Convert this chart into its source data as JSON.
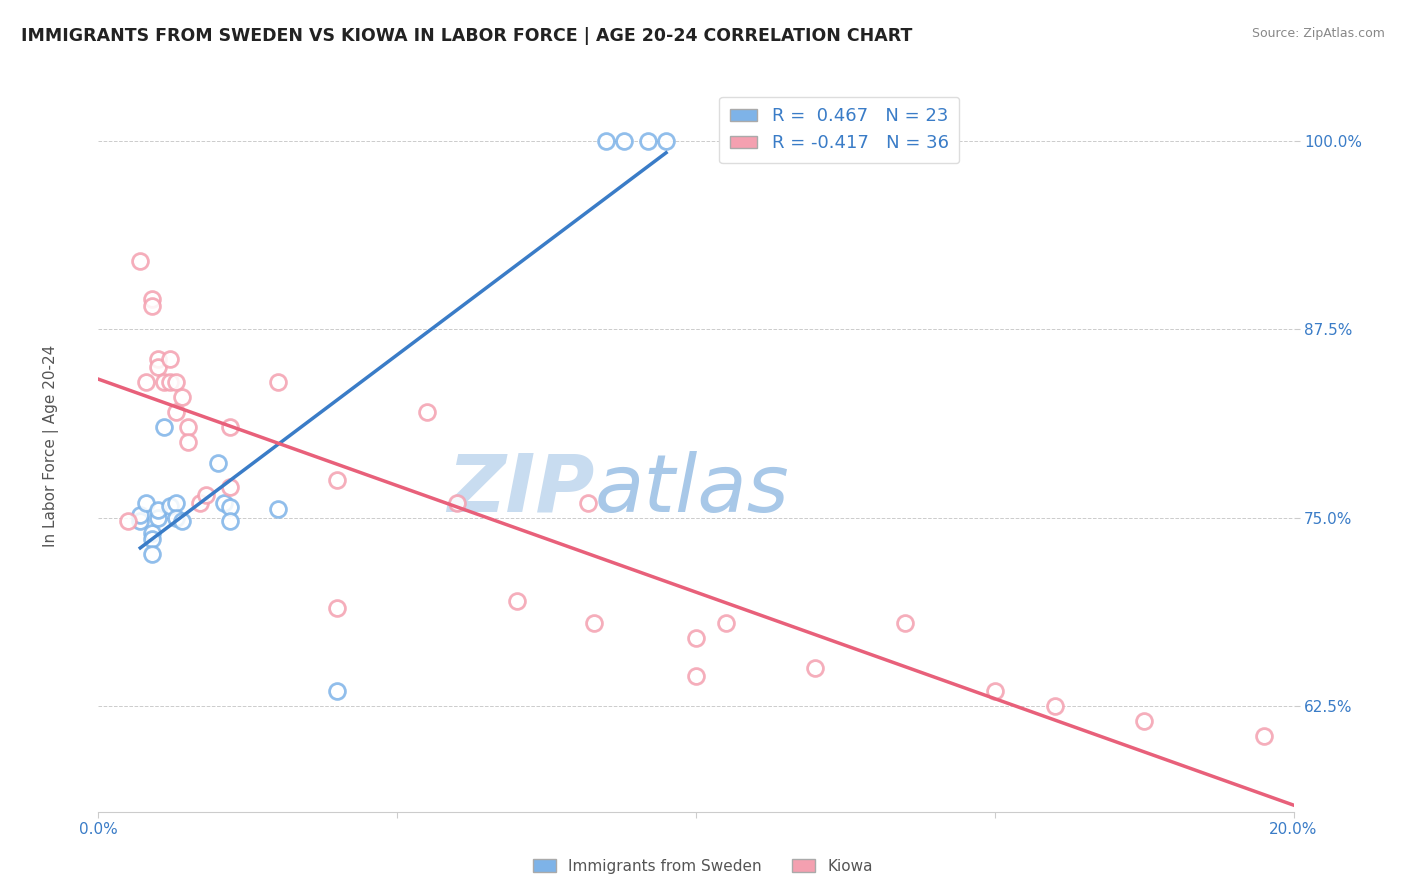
{
  "title": "IMMIGRANTS FROM SWEDEN VS KIOWA IN LABOR FORCE | AGE 20-24 CORRELATION CHART",
  "source": "Source: ZipAtlas.com",
  "ylabel": "In Labor Force | Age 20-24",
  "xlim": [
    0.0,
    0.2
  ],
  "ylim": [
    0.555,
    1.04
  ],
  "yticks": [
    0.625,
    0.75,
    0.875,
    1.0
  ],
  "ytick_labels": [
    "62.5%",
    "75.0%",
    "87.5%",
    "100.0%"
  ],
  "xticks": [
    0.0,
    0.05,
    0.1,
    0.15,
    0.2
  ],
  "xtick_labels": [
    "0.0%",
    "",
    "",
    "",
    "20.0%"
  ],
  "sweden_R": 0.467,
  "sweden_N": 23,
  "kiowa_R": -0.417,
  "kiowa_N": 36,
  "sweden_color": "#7EB3E8",
  "kiowa_color": "#F4A0B0",
  "sweden_line_color": "#3A7CC7",
  "kiowa_line_color": "#E8607A",
  "background_color": "#FFFFFF",
  "watermark_zip": "ZIP",
  "watermark_atlas": "atlas",
  "watermark_color_zip": "#C8DCF0",
  "watermark_color_atlas": "#A8C8E8",
  "sweden_x": [
    0.007,
    0.007,
    0.008,
    0.009,
    0.009,
    0.009,
    0.01,
    0.01,
    0.011,
    0.012,
    0.013,
    0.013,
    0.014,
    0.02,
    0.021,
    0.022,
    0.022,
    0.03,
    0.04,
    0.085,
    0.088,
    0.092,
    0.095
  ],
  "sweden_y": [
    0.748,
    0.752,
    0.76,
    0.74,
    0.736,
    0.726,
    0.75,
    0.755,
    0.81,
    0.758,
    0.76,
    0.75,
    0.748,
    0.786,
    0.76,
    0.757,
    0.748,
    0.756,
    0.635,
    1.0,
    1.0,
    1.0,
    1.0
  ],
  "kiowa_x": [
    0.005,
    0.007,
    0.008,
    0.009,
    0.009,
    0.01,
    0.01,
    0.011,
    0.012,
    0.012,
    0.013,
    0.013,
    0.014,
    0.015,
    0.015,
    0.017,
    0.018,
    0.022,
    0.022,
    0.03,
    0.04,
    0.04,
    0.055,
    0.06,
    0.07,
    0.082,
    0.083,
    0.1,
    0.1,
    0.105,
    0.12,
    0.135,
    0.15,
    0.16,
    0.175,
    0.195
  ],
  "kiowa_y": [
    0.748,
    0.92,
    0.84,
    0.895,
    0.89,
    0.855,
    0.85,
    0.84,
    0.855,
    0.84,
    0.84,
    0.82,
    0.83,
    0.81,
    0.8,
    0.76,
    0.765,
    0.81,
    0.77,
    0.84,
    0.775,
    0.69,
    0.82,
    0.76,
    0.695,
    0.76,
    0.68,
    0.67,
    0.645,
    0.68,
    0.65,
    0.68,
    0.635,
    0.625,
    0.615,
    0.605
  ],
  "legend_fontsize": 13,
  "title_fontsize": 12.5,
  "axis_label_fontsize": 11,
  "tick_fontsize": 11
}
